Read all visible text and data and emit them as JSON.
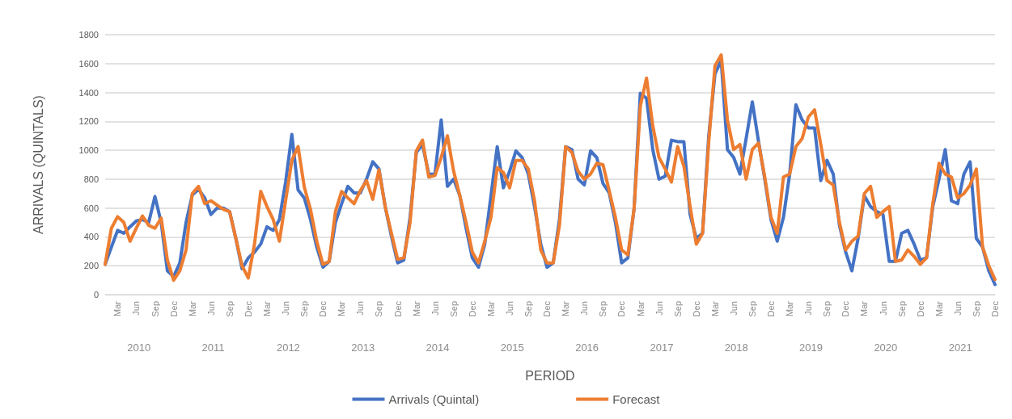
{
  "chart_data": {
    "type": "line",
    "xlabel": "PERIOD",
    "ylabel": "ARRIVALS (QUINTALS)",
    "categories": [
      null,
      null,
      "Mar",
      null,
      null,
      "Jun",
      null,
      null,
      "Sep",
      null,
      null,
      "Dec",
      null,
      null,
      "Mar",
      null,
      null,
      "Jun",
      null,
      null,
      "Sep",
      null,
      null,
      "Dec",
      null,
      null,
      "Mar",
      null,
      null,
      "Jun",
      null,
      null,
      "Sep",
      null,
      null,
      "Dec",
      null,
      null,
      "Mar",
      null,
      null,
      "Jun",
      null,
      null,
      "Sep",
      null,
      null,
      "Dec",
      null,
      null,
      "Mar",
      null,
      null,
      "Jun",
      null,
      null,
      "Sep",
      null,
      null,
      "Dec",
      null,
      null,
      "Mar",
      null,
      null,
      "Jun",
      null,
      null,
      "Sep",
      null,
      null,
      "Dec",
      null,
      null,
      "Mar",
      null,
      null,
      "Jun",
      null,
      null,
      "Sep",
      null,
      null,
      "Dec",
      null,
      null,
      "Mar",
      null,
      null,
      "Jun",
      null,
      null,
      "Sep",
      null,
      null,
      "Dec",
      null,
      null,
      "Mar",
      null,
      null,
      "Jun",
      null,
      null,
      "Sep",
      null,
      null,
      "Dec",
      null,
      null,
      "Mar",
      null,
      null,
      "Jun",
      null,
      null,
      "Sep",
      null,
      null,
      "Dec",
      null,
      null,
      "Mar",
      null,
      null,
      "Jun",
      null,
      null,
      "Sep",
      null,
      null,
      "Dec",
      null,
      null,
      "Mar",
      null,
      null,
      "Jun",
      null,
      null,
      "Sep",
      null,
      null,
      "Dec"
    ],
    "annotations": [
      "2010",
      "2011",
      "2012",
      "2013",
      "2014",
      "2015",
      "2016",
      "2017",
      "2018",
      "2019",
      "2020",
      "2021"
    ],
    "series": [
      {
        "name": "Arrivals (Quintal)",
        "color": "#4472c4",
        "values": [
          210,
          330,
          445,
          425,
          470,
          510,
          520,
          500,
          680,
          500,
          165,
          125,
          220,
          500,
          690,
          730,
          670,
          555,
          600,
          600,
          575,
          390,
          180,
          255,
          295,
          350,
          470,
          445,
          520,
          780,
          1110,
          725,
          670,
          520,
          330,
          190,
          230,
          500,
          630,
          750,
          705,
          705,
          800,
          920,
          870,
          610,
          405,
          220,
          240,
          535,
          985,
          1040,
          835,
          835,
          1210,
          750,
          800,
          685,
          460,
          255,
          190,
          350,
          685,
          1025,
          740,
          855,
          995,
          950,
          835,
          610,
          350,
          190,
          220,
          520,
          1025,
          1005,
          800,
          760,
          995,
          950,
          770,
          705,
          500,
          220,
          255,
          595,
          1395,
          1360,
          1005,
          800,
          820,
          1070,
          1060,
          1060,
          555,
          390,
          425,
          1100,
          1530,
          1620,
          1005,
          950,
          835,
          1080,
          1335,
          1060,
          800,
          520,
          370,
          535,
          835,
          1315,
          1210,
          1155,
          1155,
          790,
          930,
          835,
          480,
          295,
          165,
          390,
          685,
          610,
          575,
          555,
          230,
          230,
          425,
          445,
          350,
          240,
          255,
          610,
          800,
          1005,
          650,
          630,
          835,
          920,
          390,
          330,
          165,
          70
        ]
      },
      {
        "name": "Forecast",
        "color": "#ed7d31",
        "values": [
          210,
          460,
          540,
          500,
          370,
          460,
          545,
          480,
          460,
          530,
          240,
          100,
          165,
          310,
          700,
          750,
          630,
          650,
          620,
          590,
          575,
          390,
          200,
          115,
          350,
          715,
          610,
          520,
          370,
          650,
          930,
          1025,
          745,
          590,
          370,
          210,
          230,
          575,
          715,
          670,
          630,
          720,
          790,
          660,
          865,
          610,
          425,
          245,
          255,
          500,
          995,
          1070,
          815,
          825,
          950,
          1100,
          855,
          685,
          500,
          295,
          220,
          370,
          535,
          880,
          845,
          740,
          930,
          930,
          870,
          650,
          310,
          220,
          220,
          480,
          1025,
          985,
          855,
          800,
          835,
          910,
          900,
          720,
          535,
          310,
          275,
          595,
          1305,
          1500,
          1170,
          950,
          870,
          780,
          1025,
          890,
          610,
          350,
          425,
          1060,
          1585,
          1660,
          1210,
          1005,
          1040,
          800,
          1005,
          1050,
          815,
          535,
          425,
          815,
          835,
          1025,
          1080,
          1230,
          1280,
          1040,
          790,
          760,
          500,
          310,
          370,
          405,
          700,
          750,
          535,
          575,
          610,
          230,
          240,
          310,
          265,
          210,
          255,
          630,
          910,
          835,
          815,
          670,
          700,
          760,
          870,
          330,
          200,
          105
        ]
      }
    ],
    "ylim": [
      0,
      1800
    ],
    "yticks": [
      0,
      200,
      400,
      600,
      800,
      1000,
      1200,
      1400,
      1600,
      1800
    ],
    "grid": "y",
    "legend": "bottom",
    "marker": "none",
    "line_style": "solid"
  }
}
